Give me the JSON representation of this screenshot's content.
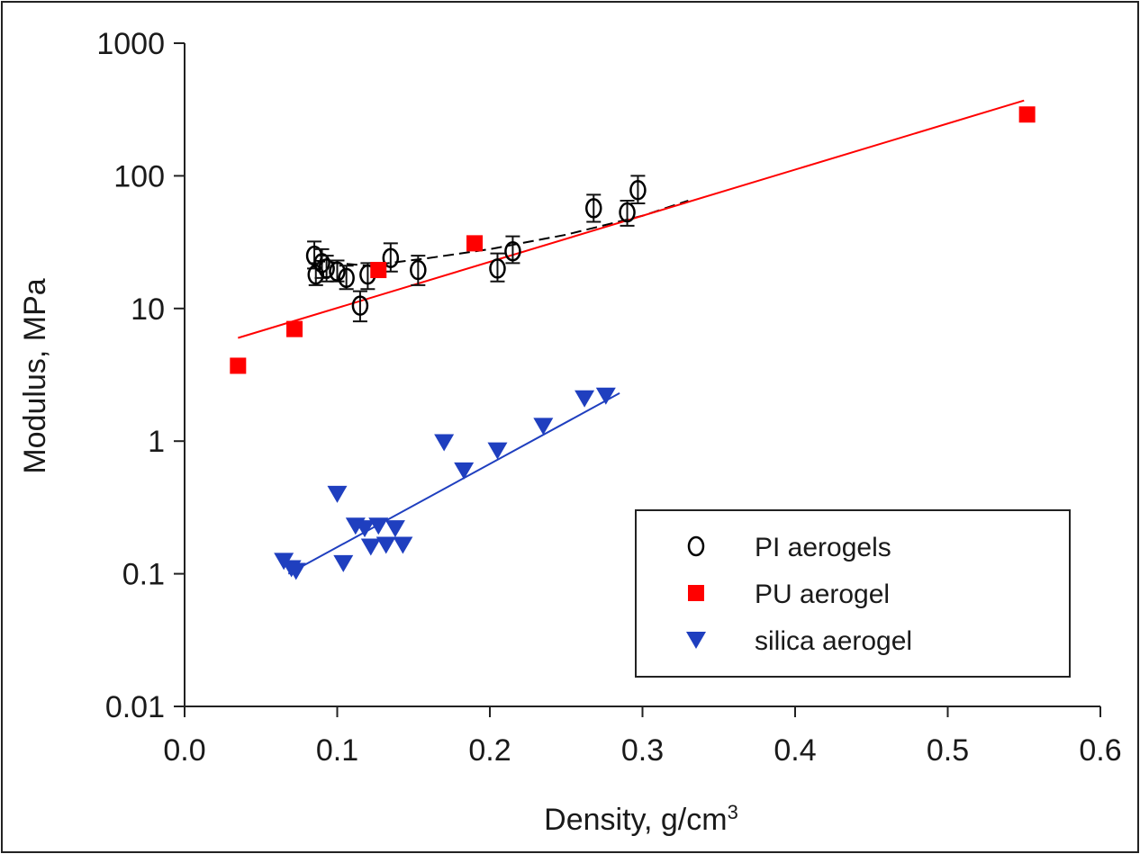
{
  "chart_data": {
    "type": "scatter",
    "xlabel": "Density, g/cm",
    "xlabel_sup": "3",
    "ylabel": "Modulus, MPa",
    "xlim": [
      0.0,
      0.6
    ],
    "ylim": [
      0.01,
      1000
    ],
    "yscale": "log",
    "grid": false,
    "legend_position": "bottom-right",
    "xticks": [
      "0.0",
      "0.1",
      "0.2",
      "0.3",
      "0.4",
      "0.5",
      "0.6"
    ],
    "yticks": [
      "0.01",
      "0.1",
      "1",
      "10",
      "100",
      "1000"
    ],
    "series": [
      {
        "name": "PI aerogels",
        "marker": "open-circle",
        "color": "#000000",
        "points": [
          {
            "x": 0.085,
            "y": 25,
            "err": [
              20,
              32
            ]
          },
          {
            "x": 0.086,
            "y": 18,
            "err": [
              15,
              22
            ]
          },
          {
            "x": 0.09,
            "y": 22,
            "err": [
              17,
              28
            ]
          },
          {
            "x": 0.093,
            "y": 20,
            "err": [
              16,
              25
            ]
          },
          {
            "x": 0.1,
            "y": 19,
            "err": [
              16,
              23
            ]
          },
          {
            "x": 0.106,
            "y": 17,
            "err": [
              14,
              21
            ]
          },
          {
            "x": 0.115,
            "y": 10.5,
            "err": [
              8,
              13.5
            ]
          },
          {
            "x": 0.12,
            "y": 18,
            "err": [
              14,
              22
            ]
          },
          {
            "x": 0.135,
            "y": 24,
            "err": [
              19,
              31
            ]
          },
          {
            "x": 0.153,
            "y": 19.5,
            "err": [
              15,
              25
            ]
          },
          {
            "x": 0.205,
            "y": 20,
            "err": [
              16,
              26
            ]
          },
          {
            "x": 0.215,
            "y": 27,
            "err": [
              22,
              35
            ]
          },
          {
            "x": 0.268,
            "y": 57,
            "err": [
              45,
              72
            ]
          },
          {
            "x": 0.29,
            "y": 53,
            "err": [
              42,
              65
            ]
          },
          {
            "x": 0.297,
            "y": 78,
            "err": [
              62,
              100
            ]
          }
        ],
        "trend": {
          "style": "dashed",
          "x": [
            0.085,
            0.1,
            0.12,
            0.16,
            0.2,
            0.25,
            0.3,
            0.33
          ],
          "y": [
            23,
            22,
            21,
            24,
            28,
            36,
            50,
            65
          ]
        }
      },
      {
        "name": "PU aerogel",
        "marker": "filled-square",
        "color": "#ff0000",
        "points": [
          {
            "x": 0.035,
            "y": 3.7
          },
          {
            "x": 0.072,
            "y": 7.0
          },
          {
            "x": 0.127,
            "y": 19.5
          },
          {
            "x": 0.19,
            "y": 31
          },
          {
            "x": 0.552,
            "y": 290
          }
        ],
        "trend": {
          "style": "solid",
          "x": [
            0.035,
            0.55
          ],
          "y": [
            6,
            370
          ]
        }
      },
      {
        "name": "silica  aerogel",
        "marker": "filled-triangle-down",
        "color": "#1f3fbf",
        "points": [
          {
            "x": 0.065,
            "y": 0.125
          },
          {
            "x": 0.07,
            "y": 0.11
          },
          {
            "x": 0.073,
            "y": 0.105
          },
          {
            "x": 0.1,
            "y": 0.4
          },
          {
            "x": 0.104,
            "y": 0.12
          },
          {
            "x": 0.112,
            "y": 0.23
          },
          {
            "x": 0.118,
            "y": 0.22
          },
          {
            "x": 0.122,
            "y": 0.16
          },
          {
            "x": 0.127,
            "y": 0.23
          },
          {
            "x": 0.132,
            "y": 0.165
          },
          {
            "x": 0.138,
            "y": 0.22
          },
          {
            "x": 0.143,
            "y": 0.165
          },
          {
            "x": 0.17,
            "y": 0.98
          },
          {
            "x": 0.183,
            "y": 0.6
          },
          {
            "x": 0.205,
            "y": 0.85
          },
          {
            "x": 0.235,
            "y": 1.3
          },
          {
            "x": 0.262,
            "y": 2.1
          },
          {
            "x": 0.276,
            "y": 2.2
          }
        ],
        "trend": {
          "style": "solid",
          "x": [
            0.068,
            0.285
          ],
          "y": [
            0.1,
            2.3
          ]
        }
      }
    ]
  }
}
